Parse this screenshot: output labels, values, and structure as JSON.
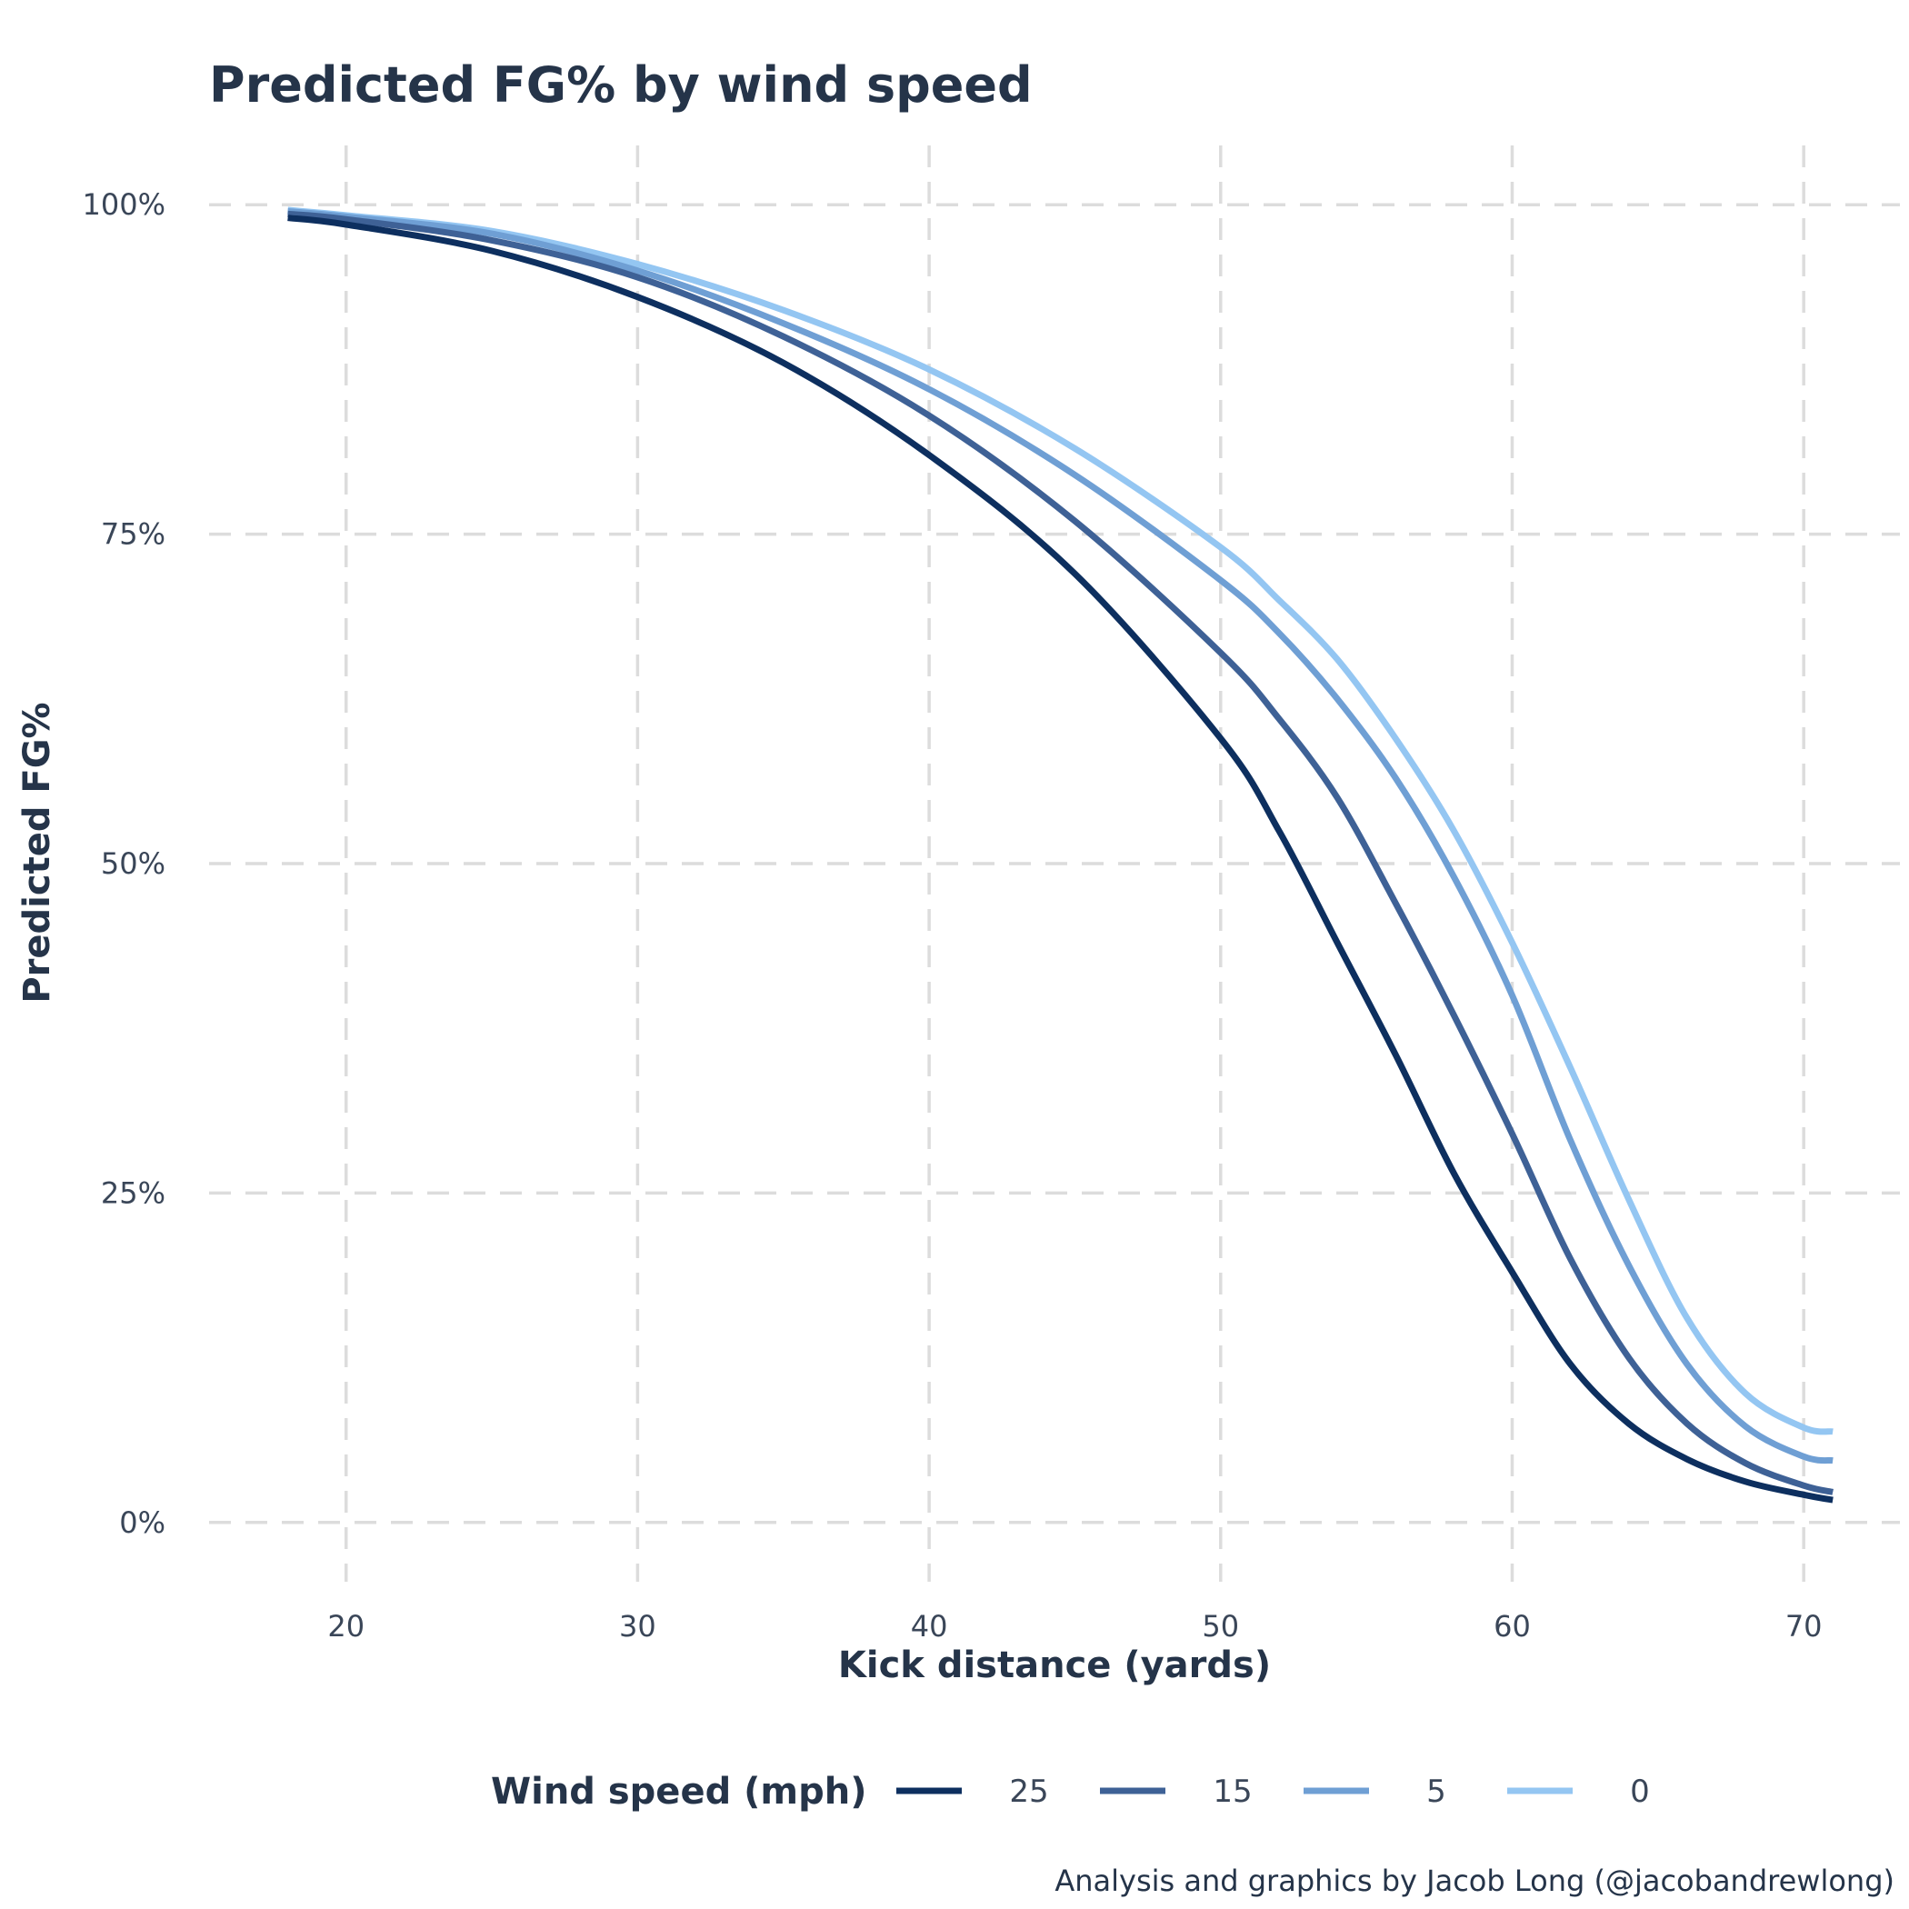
{
  "chart_data": {
    "type": "line",
    "title": "Predicted FG% by wind speed",
    "xlabel": "Kick distance (yards)",
    "ylabel": "Predicted FG%",
    "xlim": [
      15.3,
      73.3
    ],
    "ylim": [
      -0.045,
      1.045
    ],
    "x_ticks": [
      20,
      30,
      40,
      50,
      60,
      70
    ],
    "x_tick_labels": [
      "20",
      "30",
      "40",
      "50",
      "60",
      "70"
    ],
    "y_ticks": [
      0,
      0.25,
      0.5,
      0.75,
      1
    ],
    "y_tick_labels": [
      "0%",
      "25%",
      "50%",
      "75%",
      "100%"
    ],
    "grid": true,
    "legend_position": "bottom",
    "legend_title": "Wind speed (mph)",
    "x": [
      18,
      20,
      25,
      30,
      35,
      40,
      45,
      50,
      52,
      54,
      56,
      58,
      60,
      62,
      64,
      66,
      68,
      70,
      71
    ],
    "series": [
      {
        "name": "25",
        "color": "#0d2f5f",
        "values": [
          0.99,
          0.985,
          0.965,
          0.93,
          0.88,
          0.81,
          0.72,
          0.595,
          0.525,
          0.44,
          0.355,
          0.265,
          0.19,
          0.12,
          0.075,
          0.048,
          0.031,
          0.021,
          0.017
        ]
      },
      {
        "name": "15",
        "color": "#3e6196",
        "values": [
          0.993,
          0.989,
          0.973,
          0.945,
          0.9,
          0.84,
          0.76,
          0.66,
          0.61,
          0.55,
          0.47,
          0.385,
          0.295,
          0.2,
          0.125,
          0.075,
          0.045,
          0.028,
          0.023
        ]
      },
      {
        "name": "5",
        "color": "#6f9fd4",
        "values": [
          0.995,
          0.991,
          0.978,
          0.95,
          0.91,
          0.86,
          0.795,
          0.715,
          0.675,
          0.625,
          0.565,
          0.49,
          0.4,
          0.29,
          0.195,
          0.12,
          0.073,
          0.05,
          0.047
        ]
      },
      {
        "name": "0",
        "color": "#94c6f2",
        "values": [
          0.996,
          0.992,
          0.98,
          0.955,
          0.92,
          0.875,
          0.815,
          0.74,
          0.7,
          0.655,
          0.595,
          0.525,
          0.44,
          0.345,
          0.245,
          0.155,
          0.098,
          0.072,
          0.069
        ]
      }
    ]
  },
  "caption": "Analysis and graphics by Jacob Long (@jacobandrewlong)"
}
